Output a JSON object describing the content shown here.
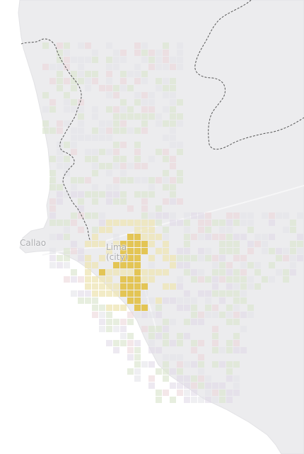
{
  "map": {
    "labels": {
      "callao": "Callao",
      "lima_line1": "Lima",
      "lima_line2": "(city)"
    },
    "colors": {
      "land": "#ececee",
      "coast_edge": "#e2e2e5",
      "water": "#ffffff",
      "boundary": "#555555",
      "road": "#f6f6f7",
      "cell_highlight": "#e3c34c",
      "cell_light_yellow": "#efe6b8",
      "cell_green": "#dde7d2",
      "cell_pink": "#ecd7da",
      "cell_lilac": "#e1dbe7",
      "cell_gray": "#e4e4ea"
    }
  }
}
